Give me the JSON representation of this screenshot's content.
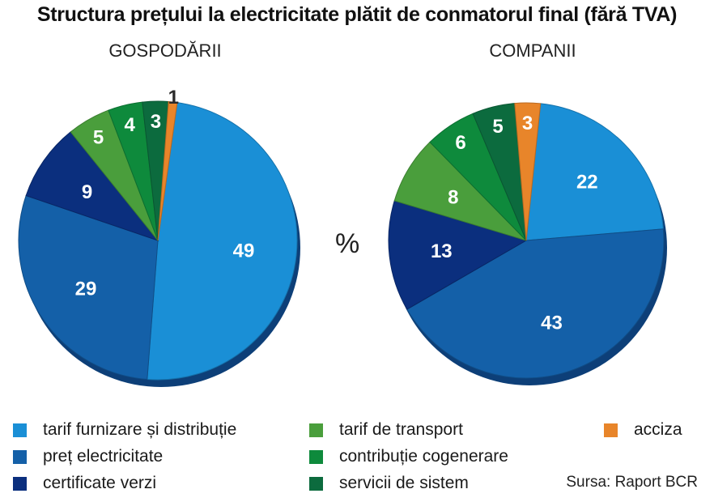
{
  "title": "Structura prețului la electricitate plătit de conmatorul final (fără TVA)",
  "unit": "%",
  "source": "Sursa: Raport BCR",
  "colors": {
    "tarif_furnizare": "#1a8fd6",
    "pret_electricitate": "#1460a8",
    "certificate_verzi": "#0b2f7e",
    "tarif_transport": "#4a9e3c",
    "contributie_cogenerare": "#0e8a3c",
    "servicii_sistem": "#0c6b3e",
    "acciza": "#e8852a"
  },
  "legend": [
    {
      "label": "tarif furnizare și distribuție",
      "color": "#1a8fd6"
    },
    {
      "label": "preț electricitate",
      "color": "#1460a8"
    },
    {
      "label": "certificate verzi",
      "color": "#0b2f7e"
    },
    {
      "label": "tarif de transport",
      "color": "#4a9e3c"
    },
    {
      "label": "contribuție cogenerare",
      "color": "#0e8a3c"
    },
    {
      "label": "servicii de sistem",
      "color": "#0c6b3e"
    },
    {
      "label": "acciza",
      "color": "#e8852a"
    }
  ],
  "chart_data": [
    {
      "type": "pie",
      "title": "GOSPODĂRII",
      "categories": [
        "tarif furnizare și distribuție",
        "preț electricitate",
        "certificate verzi",
        "tarif de transport",
        "contribuție cogenerare",
        "servicii de sistem",
        "acciza"
      ],
      "values": [
        49,
        29,
        9,
        5,
        4,
        3,
        1
      ]
    },
    {
      "type": "pie",
      "title": "COMPANII",
      "categories": [
        "tarif furnizare și distribuție",
        "preț electricitate",
        "certificate verzi",
        "tarif de transport",
        "contribuție cogenerare",
        "servicii de sistem",
        "acciza"
      ],
      "values": [
        22,
        43,
        13,
        8,
        6,
        5,
        3
      ]
    }
  ]
}
